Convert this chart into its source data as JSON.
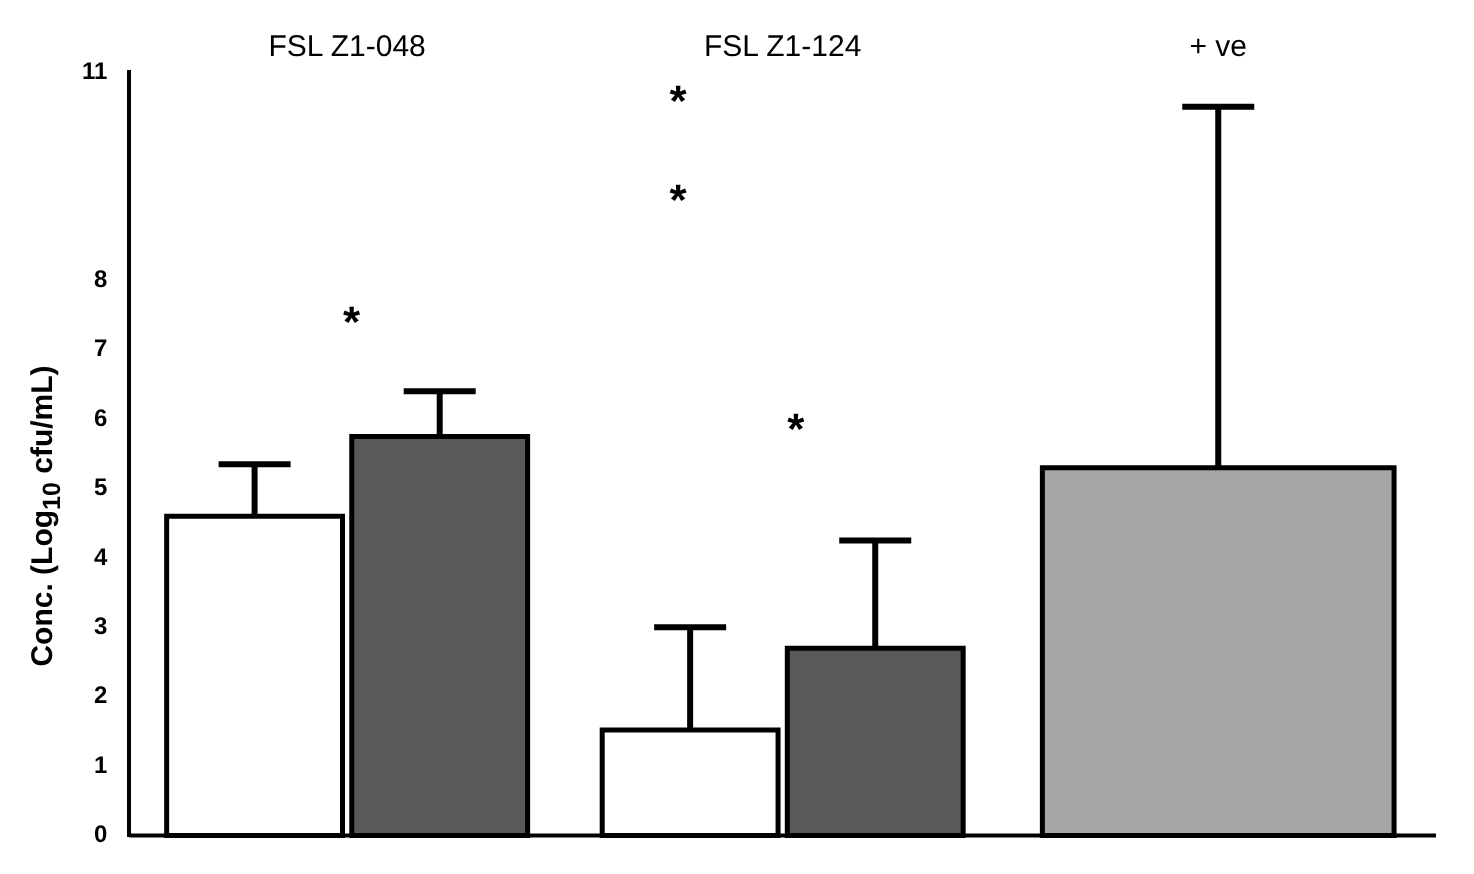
{
  "chart_data": {
    "type": "bar",
    "ylabel": "Conc. (Log$_{10}$ cfu/mL)",
    "categories": [
      "FSL Z1-048",
      "FSL Z1-124",
      "+ ve"
    ],
    "series": [
      {
        "color": "#ffffff",
        "values": [
          4.6,
          1.52,
          null
        ],
        "errors": [
          [
            4.6,
            5.35
          ],
          [
            1.52,
            3.0
          ],
          null
        ]
      },
      {
        "color": "#595959",
        "values": [
          5.75,
          2.7,
          null
        ],
        "errors": [
          [
            5.75,
            6.4
          ],
          [
            2.7,
            4.25
          ],
          null
        ]
      },
      {
        "color": "#a6a6a6",
        "values": [
          null,
          null,
          5.3
        ],
        "errors": [
          null,
          null,
          [
            5.3,
            10.5
          ]
        ]
      }
    ],
    "ylim": [
      0,
      11
    ],
    "yticks": [
      0,
      1,
      2,
      3,
      4,
      5,
      6,
      7,
      8,
      11
    ],
    "grid": false,
    "legend": false,
    "annotations": [
      "*",
      "*",
      "*",
      "*"
    ]
  }
}
